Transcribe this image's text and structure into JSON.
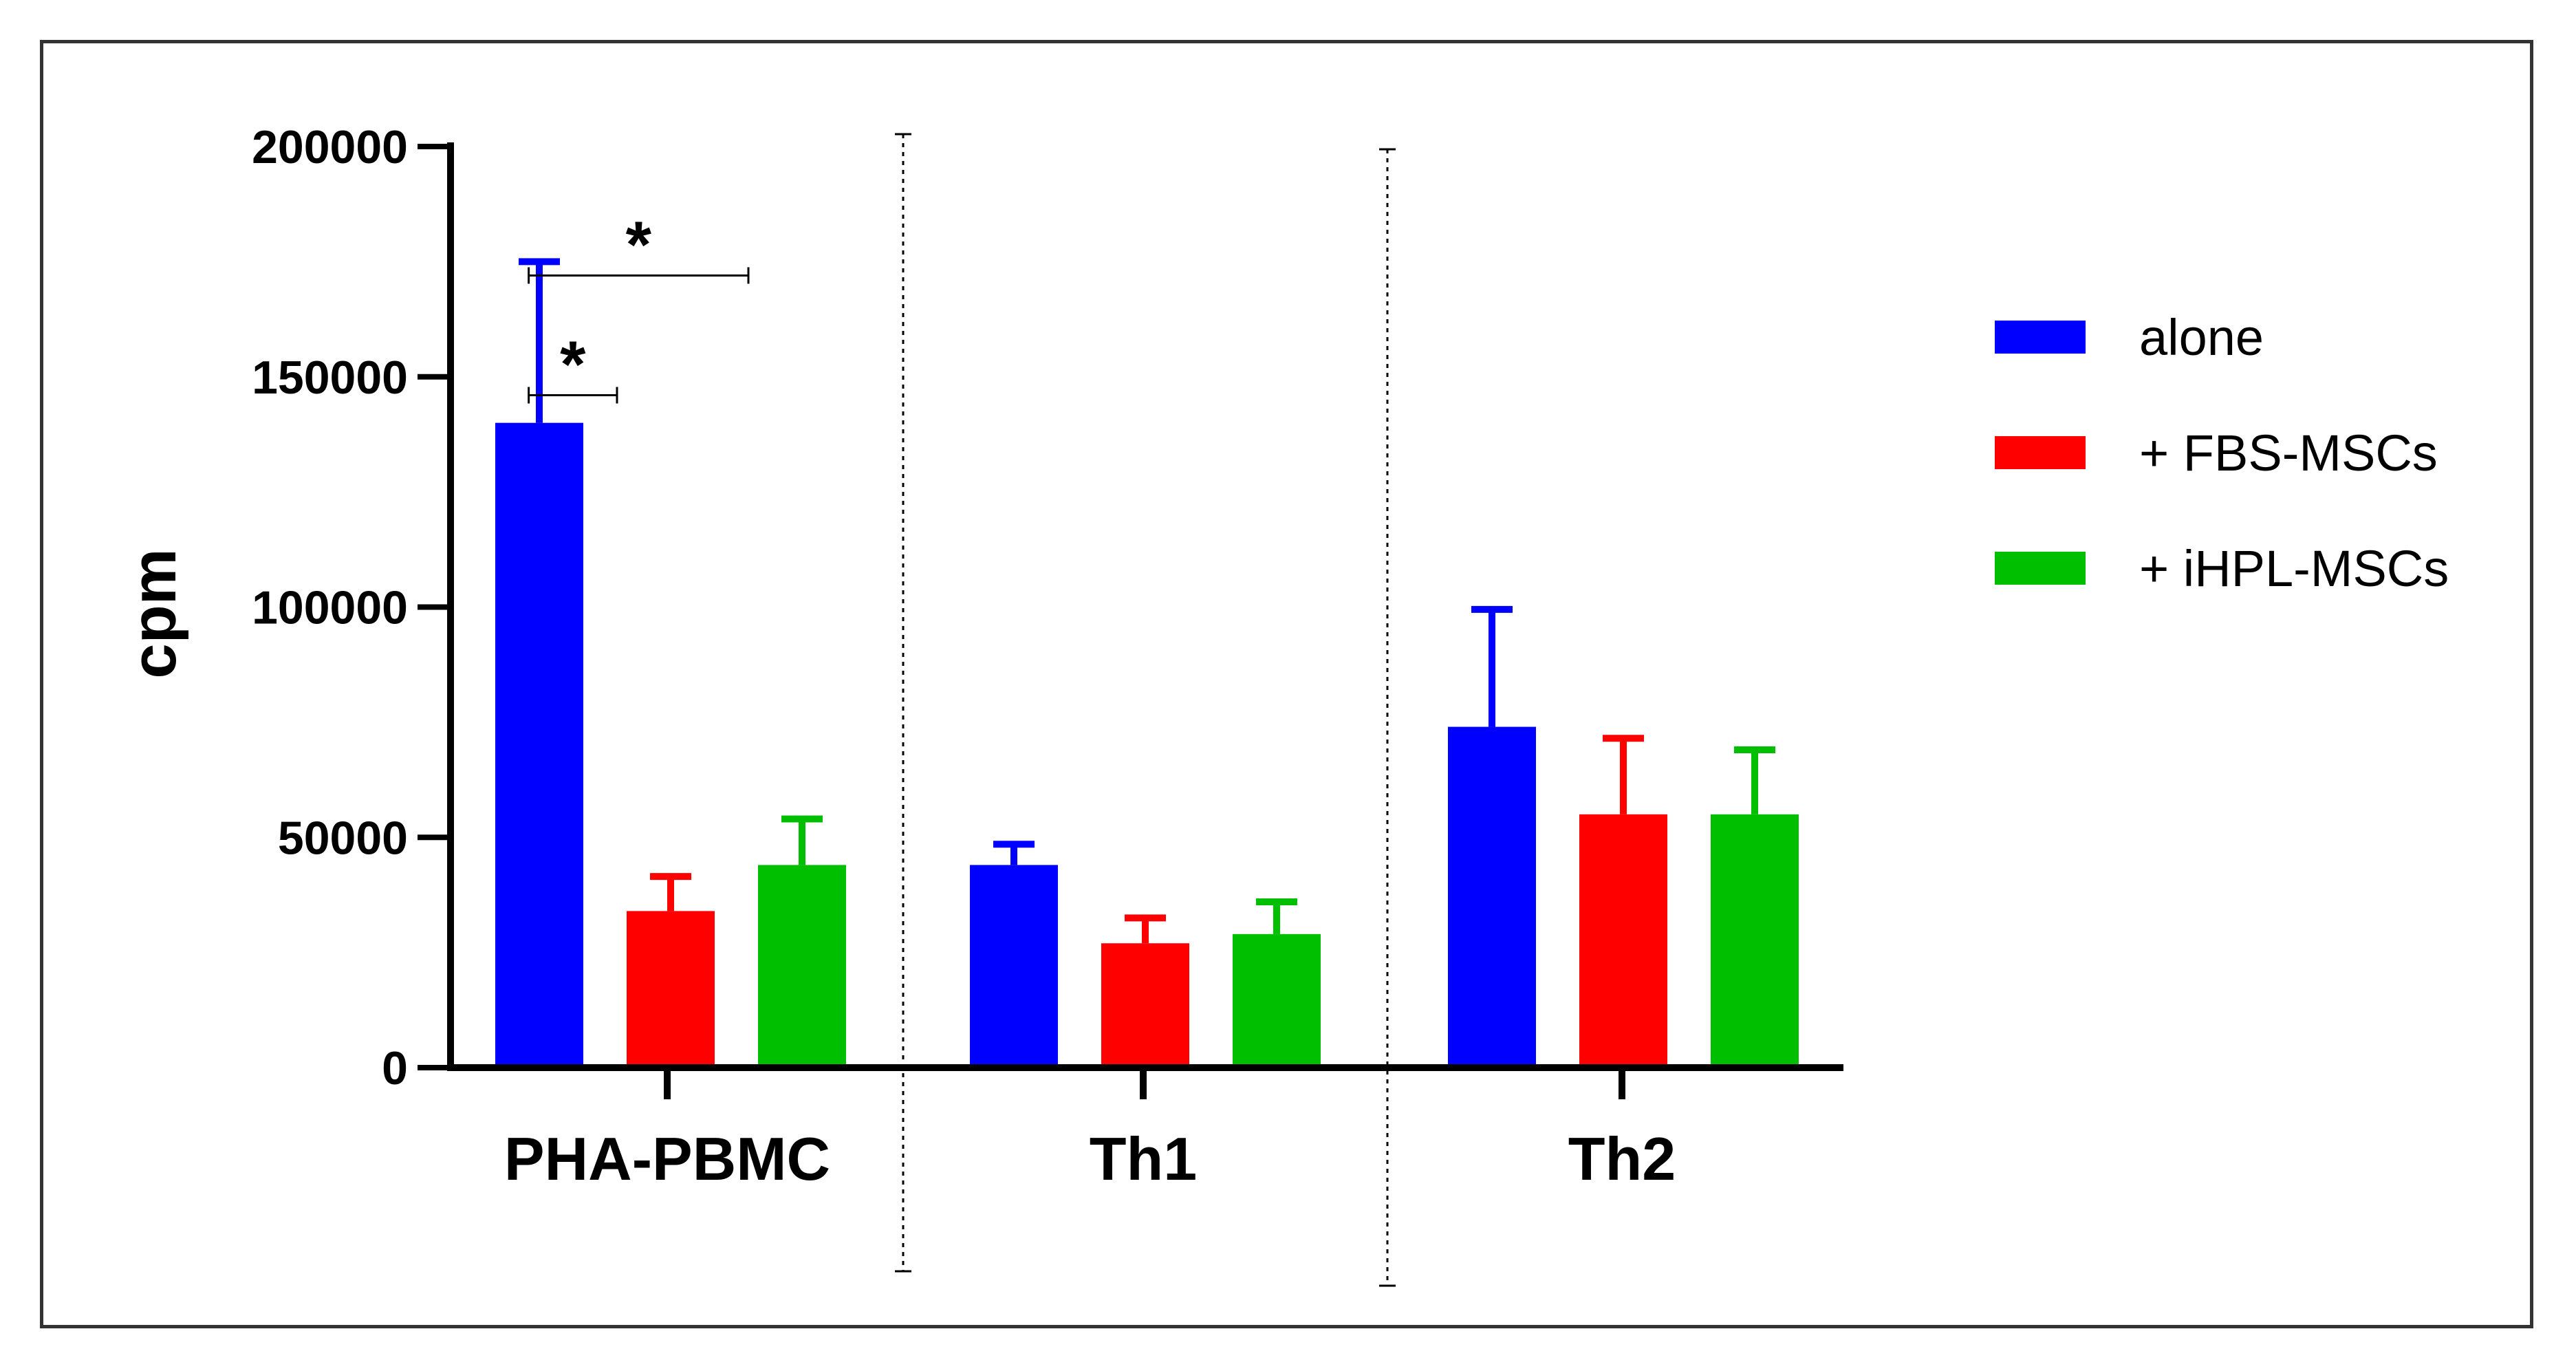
{
  "chart_data": {
    "type": "bar",
    "title": "",
    "xlabel": "",
    "ylabel": "cpm",
    "ylim": [
      0,
      200000
    ],
    "yticks": [
      0,
      50000,
      100000,
      150000,
      200000
    ],
    "ytick_labels": [
      "0",
      "50000",
      "100000",
      "150000",
      "200000"
    ],
    "categories": [
      "PHA-PBMC",
      "Th1",
      "Th2"
    ],
    "series": [
      {
        "name": "alone",
        "color": "#0000FF",
        "values": [
          140000,
          44000,
          74000
        ],
        "errors": [
          35000,
          4500,
          25500
        ]
      },
      {
        "name": "+ FBS-MSCs",
        "color": "#FF0000",
        "values": [
          34000,
          27000,
          55000
        ],
        "errors": [
          7500,
          5500,
          16500
        ]
      },
      {
        "name": "+ iHPL-MSCs",
        "color": "#00BF00",
        "values": [
          44000,
          29000,
          55000
        ],
        "errors": [
          10000,
          7000,
          14000
        ]
      }
    ],
    "legend_position": "right",
    "grid": false,
    "significance": [
      {
        "category": "PHA-PBMC",
        "from_series": "alone",
        "to_series": "+ iHPL-MSCs",
        "y": 172000,
        "label": "*"
      },
      {
        "category": "PHA-PBMC",
        "from_series": "alone",
        "to_series": "+ FBS-MSCs",
        "y": 146000,
        "label": "*"
      }
    ]
  }
}
